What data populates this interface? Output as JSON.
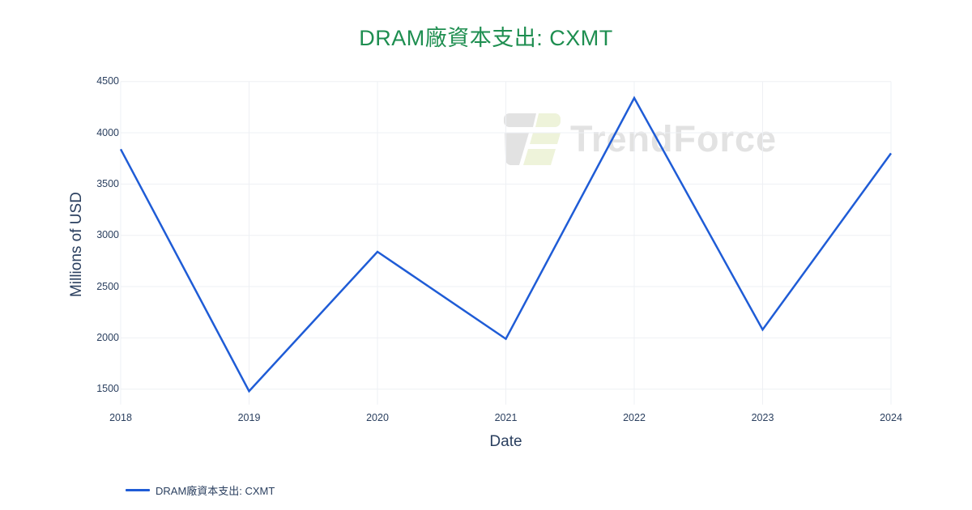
{
  "page_title": "DRAM廠資本支出: CXMT",
  "watermark": {
    "text": "TrendForce"
  },
  "legend": {
    "label": "DRAM廠資本支出: CXMT"
  },
  "colors": {
    "title": "#1e8e50",
    "line": "#1f5cd6",
    "tick_text": "#2a3f5f",
    "axis_title_text": "#2a3f5f",
    "grid": "#eef0f4",
    "watermark_text": "#e2e2e2",
    "logo_gray": "#e2e2e2",
    "logo_green": "#eef3da",
    "background": "#ffffff"
  },
  "chart_data": {
    "type": "line",
    "title": "DRAM廠資本支出: CXMT",
    "xlabel": "Date",
    "ylabel": "Millions of USD",
    "categories": [
      "2018",
      "2019",
      "2020",
      "2021",
      "2022",
      "2023",
      "2024"
    ],
    "series": [
      {
        "name": "DRAM廠資本支出: CXMT",
        "values": [
          3840,
          1480,
          2840,
          1990,
          4340,
          2080,
          3800
        ]
      }
    ],
    "yticks": [
      1500,
      2000,
      2500,
      3000,
      3500,
      4000,
      4500
    ],
    "ylim": [
      1350,
      4500
    ],
    "grid": true,
    "legend_position": "bottom-left"
  }
}
